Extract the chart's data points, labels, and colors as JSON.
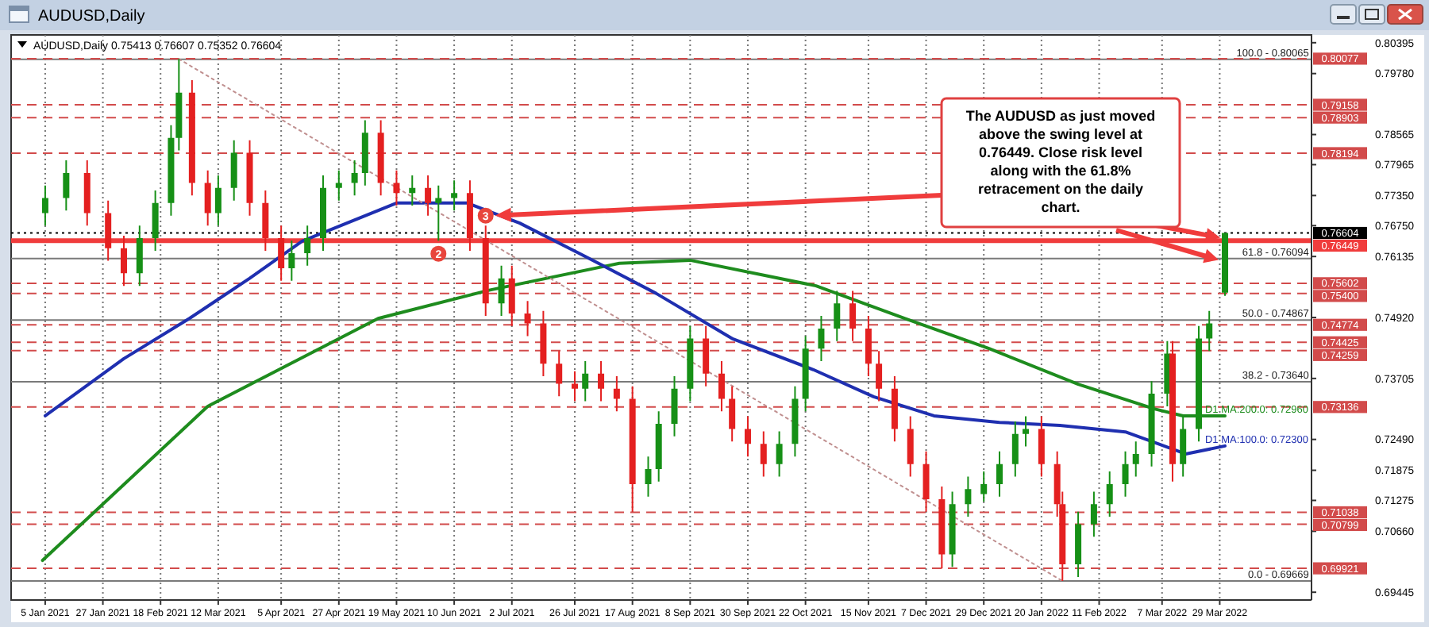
{
  "chart_data": {
    "type": "candlestick",
    "title": "AUDUSD,Daily",
    "subtitle": "AUDUSD,Daily 0.75413 0.76607 0.75352 0.76604",
    "x": [
      "2021-01-05",
      "2021-01-13",
      "2021-01-21",
      "2021-01-29",
      "2021-02-04",
      "2021-02-10",
      "2021-02-16",
      "2021-02-22",
      "2021-02-25",
      "2021-03-02",
      "2021-03-08",
      "2021-03-12",
      "2021-03-18",
      "2021-03-24",
      "2021-03-30",
      "2021-04-05",
      "2021-04-09",
      "2021-04-15",
      "2021-04-21",
      "2021-04-27",
      "2021-05-03",
      "2021-05-07",
      "2021-05-13",
      "2021-05-19",
      "2021-05-25",
      "2021-05-31",
      "2021-06-04",
      "2021-06-10",
      "2021-06-16",
      "2021-06-22",
      "2021-06-28",
      "2021-07-02",
      "2021-07-08",
      "2021-07-14",
      "2021-07-20",
      "2021-07-26",
      "2021-07-30",
      "2021-08-05",
      "2021-08-11",
      "2021-08-17",
      "2021-08-23",
      "2021-08-27",
      "2021-09-02",
      "2021-09-08",
      "2021-09-14",
      "2021-09-20",
      "2021-09-24",
      "2021-09-30",
      "2021-10-06",
      "2021-10-12",
      "2021-10-18",
      "2021-10-22",
      "2021-10-28",
      "2021-11-03",
      "2021-11-09",
      "2021-11-15",
      "2021-11-19",
      "2021-11-25",
      "2021-12-01",
      "2021-12-07",
      "2021-12-13",
      "2021-12-17",
      "2021-12-23",
      "2021-12-29",
      "2022-01-04",
      "2022-01-10",
      "2022-01-14",
      "2022-01-20",
      "2022-01-26",
      "2022-01-28",
      "2022-02-03",
      "2022-02-09",
      "2022-02-15",
      "2022-02-21",
      "2022-02-25",
      "2022-03-03",
      "2022-03-09",
      "2022-03-11",
      "2022-03-15",
      "2022-03-21",
      "2022-03-25",
      "2022-03-31"
    ],
    "ohlc": [
      [
        0.77,
        0.7755,
        0.7675,
        0.773
      ],
      [
        0.773,
        0.7805,
        0.7705,
        0.778
      ],
      [
        0.778,
        0.7805,
        0.7675,
        0.77
      ],
      [
        0.77,
        0.7725,
        0.7605,
        0.763
      ],
      [
        0.763,
        0.7655,
        0.7555,
        0.758
      ],
      [
        0.758,
        0.7675,
        0.7555,
        0.765
      ],
      [
        0.765,
        0.7745,
        0.7625,
        0.772
      ],
      [
        0.772,
        0.7875,
        0.7695,
        0.785
      ],
      [
        0.785,
        0.8007,
        0.7825,
        0.794
      ],
      [
        0.794,
        0.7965,
        0.7735,
        0.776
      ],
      [
        0.776,
        0.7785,
        0.7675,
        0.77
      ],
      [
        0.77,
        0.7775,
        0.7675,
        0.775
      ],
      [
        0.775,
        0.7845,
        0.7725,
        0.782
      ],
      [
        0.782,
        0.7845,
        0.7695,
        0.772
      ],
      [
        0.772,
        0.7745,
        0.7625,
        0.765
      ],
      [
        0.765,
        0.7675,
        0.7565,
        0.759
      ],
      [
        0.759,
        0.7645,
        0.7565,
        0.762
      ],
      [
        0.762,
        0.7675,
        0.7595,
        0.765
      ],
      [
        0.765,
        0.7775,
        0.7625,
        0.775
      ],
      [
        0.775,
        0.7785,
        0.7725,
        0.776
      ],
      [
        0.776,
        0.7805,
        0.7735,
        0.778
      ],
      [
        0.778,
        0.7885,
        0.7755,
        0.786
      ],
      [
        0.786,
        0.7885,
        0.7735,
        0.776
      ],
      [
        0.776,
        0.7785,
        0.7715,
        0.774
      ],
      [
        0.774,
        0.7775,
        0.7715,
        0.775
      ],
      [
        0.775,
        0.7775,
        0.7695,
        0.772
      ],
      [
        0.772,
        0.7755,
        0.7645,
        0.773
      ],
      [
        0.773,
        0.7765,
        0.7705,
        0.774
      ],
      [
        0.774,
        0.7765,
        0.7625,
        0.765
      ],
      [
        0.765,
        0.7675,
        0.7495,
        0.752
      ],
      [
        0.752,
        0.7595,
        0.7495,
        0.757
      ],
      [
        0.757,
        0.7595,
        0.7475,
        0.75
      ],
      [
        0.75,
        0.7525,
        0.7455,
        0.748
      ],
      [
        0.748,
        0.7505,
        0.7375,
        0.74
      ],
      [
        0.74,
        0.7425,
        0.7335,
        0.736
      ],
      [
        0.736,
        0.7385,
        0.7325,
        0.735
      ],
      [
        0.735,
        0.7405,
        0.7325,
        0.738
      ],
      [
        0.738,
        0.7405,
        0.7325,
        0.735
      ],
      [
        0.735,
        0.7375,
        0.7305,
        0.733
      ],
      [
        0.733,
        0.7355,
        0.7105,
        0.716
      ],
      [
        0.716,
        0.7215,
        0.7135,
        0.719
      ],
      [
        0.719,
        0.7305,
        0.7165,
        0.728
      ],
      [
        0.728,
        0.7375,
        0.7255,
        0.735
      ],
      [
        0.735,
        0.7475,
        0.7325,
        0.745
      ],
      [
        0.745,
        0.7475,
        0.7355,
        0.738
      ],
      [
        0.738,
        0.7405,
        0.7305,
        0.733
      ],
      [
        0.733,
        0.7355,
        0.7245,
        0.727
      ],
      [
        0.727,
        0.7295,
        0.7215,
        0.724
      ],
      [
        0.724,
        0.7265,
        0.7175,
        0.72
      ],
      [
        0.72,
        0.7265,
        0.7175,
        0.724
      ],
      [
        0.724,
        0.7355,
        0.7215,
        0.733
      ],
      [
        0.733,
        0.7455,
        0.7305,
        0.743
      ],
      [
        0.743,
        0.7495,
        0.7405,
        0.747
      ],
      [
        0.747,
        0.7545,
        0.7445,
        0.752
      ],
      [
        0.752,
        0.7545,
        0.7445,
        0.747
      ],
      [
        0.747,
        0.7495,
        0.7375,
        0.74
      ],
      [
        0.74,
        0.7425,
        0.7325,
        0.735
      ],
      [
        0.735,
        0.7375,
        0.7245,
        0.727
      ],
      [
        0.727,
        0.7295,
        0.7175,
        0.72
      ],
      [
        0.72,
        0.7225,
        0.7105,
        0.713
      ],
      [
        0.713,
        0.7155,
        0.6992,
        0.702
      ],
      [
        0.702,
        0.7145,
        0.6995,
        0.712
      ],
      [
        0.712,
        0.7175,
        0.7095,
        0.715
      ],
      [
        0.714,
        0.7185,
        0.7125,
        0.716
      ],
      [
        0.716,
        0.7225,
        0.7135,
        0.72
      ],
      [
        0.72,
        0.7285,
        0.7175,
        0.726
      ],
      [
        0.726,
        0.7295,
        0.7235,
        0.727
      ],
      [
        0.727,
        0.7295,
        0.7175,
        0.72
      ],
      [
        0.72,
        0.7225,
        0.7095,
        0.712
      ],
      [
        0.712,
        0.7145,
        0.6967,
        0.7
      ],
      [
        0.7,
        0.7105,
        0.6975,
        0.708
      ],
      [
        0.708,
        0.7145,
        0.7055,
        0.712
      ],
      [
        0.712,
        0.7185,
        0.7095,
        0.716
      ],
      [
        0.716,
        0.7225,
        0.7135,
        0.72
      ],
      [
        0.72,
        0.7245,
        0.7175,
        0.722
      ],
      [
        0.722,
        0.7365,
        0.7195,
        0.734
      ],
      [
        0.734,
        0.7445,
        0.7315,
        0.742
      ],
      [
        0.742,
        0.7445,
        0.7165,
        0.72
      ],
      [
        0.72,
        0.7295,
        0.7175,
        0.727
      ],
      [
        0.727,
        0.7475,
        0.7245,
        0.745
      ],
      [
        0.745,
        0.7505,
        0.7425,
        0.748
      ],
      [
        0.75413,
        0.76607,
        0.75352,
        0.76604
      ]
    ],
    "xlim": [
      "2020-12-23",
      "2022-05-03"
    ],
    "xticks": [
      {
        "value": "2021-01-05",
        "label": "5 Jan 2021"
      },
      {
        "value": "2021-01-27",
        "label": "27 Jan 2021"
      },
      {
        "value": "2021-02-18",
        "label": "18 Feb 2021"
      },
      {
        "value": "2021-03-12",
        "label": "12 Mar 2021"
      },
      {
        "value": "2021-04-05",
        "label": "5 Apr 2021"
      },
      {
        "value": "2021-04-27",
        "label": "27 Apr 2021"
      },
      {
        "value": "2021-05-19",
        "label": "19 May 2021"
      },
      {
        "value": "2021-06-10",
        "label": "10 Jun 2021"
      },
      {
        "value": "2021-07-02",
        "label": "2 Jul 2021"
      },
      {
        "value": "2021-07-26",
        "label": "26 Jul 2021"
      },
      {
        "value": "2021-08-17",
        "label": "17 Aug 2021"
      },
      {
        "value": "2021-09-08",
        "label": "8 Sep 2021"
      },
      {
        "value": "2021-09-30",
        "label": "30 Sep 2021"
      },
      {
        "value": "2021-10-22",
        "label": "22 Oct 2021"
      },
      {
        "value": "2021-11-15",
        "label": "15 Nov 2021"
      },
      {
        "value": "2021-12-07",
        "label": "7 Dec 2021"
      },
      {
        "value": "2021-12-29",
        "label": "29 Dec 2021"
      },
      {
        "value": "2022-01-20",
        "label": "20 Jan 2022"
      },
      {
        "value": "2022-02-11",
        "label": "11 Feb 2022"
      },
      {
        "value": "2022-03-07",
        "label": "7 Mar 2022"
      },
      {
        "value": "2022-03-29",
        "label": "29 Mar 2022"
      }
    ],
    "ylim": [
      0.6929,
      0.8055
    ],
    "yticks": [
      0.80395,
      {
        "value": 0.7978,
        "label": "0.79780"
      },
      0.78565,
      0.77965,
      {
        "value": 0.7735,
        "label": "0.77350"
      },
      {
        "value": 0.7675,
        "label": "0.76750"
      },
      0.76135,
      {
        "value": 0.7492,
        "label": "0.74920"
      },
      0.73705,
      {
        "value": 0.7249,
        "label": "0.72490"
      },
      0.71875,
      0.71275,
      {
        "value": 0.7066,
        "label": "0.70660"
      },
      0.69445
    ],
    "grid": "x",
    "series": [
      {
        "type": "line",
        "name": "D1 MA:200.0: 0.72960",
        "color": "#1e8c1e",
        "x": [
          "2021-01-04",
          "2021-03-08",
          "2021-05-12",
          "2021-06-23",
          "2021-08-12",
          "2021-09-08",
          "2021-10-26",
          "2021-11-29",
          "2021-12-31",
          "2022-02-03",
          "2022-03-04",
          "2022-03-15",
          "2022-03-31"
        ],
        "values": [
          0.7008,
          0.7315,
          0.749,
          0.7546,
          0.76,
          0.7606,
          0.7555,
          0.749,
          0.743,
          0.7359,
          0.731,
          0.7296,
          0.7296
        ]
      },
      {
        "type": "line",
        "name": "D1 MA:100.0: 0.72300",
        "color": "#1f2fb0",
        "x": [
          "2021-01-05",
          "2021-02-04",
          "2021-03-01",
          "2021-03-24",
          "2021-04-13",
          "2021-05-19",
          "2021-06-15",
          "2021-07-05",
          "2021-07-28",
          "2021-08-26",
          "2021-09-24",
          "2021-10-25",
          "2021-11-17",
          "2021-12-10",
          "2022-01-04",
          "2022-01-27",
          "2022-02-21",
          "2022-03-03",
          "2022-03-16",
          "2022-03-31"
        ],
        "values": [
          0.7296,
          0.741,
          0.749,
          0.757,
          0.7644,
          0.772,
          0.772,
          0.768,
          0.7619,
          0.754,
          0.745,
          0.7388,
          0.7334,
          0.7296,
          0.7283,
          0.7277,
          0.7264,
          0.7245,
          0.722,
          0.7236
        ]
      },
      {
        "type": "line",
        "color": "#c09090",
        "line_style": "dotted",
        "x": [
          "2021-02-25",
          "2022-01-28"
        ],
        "values": [
          0.8007,
          0.6967
        ]
      }
    ],
    "ref_lines": [
      {
        "axis": "y",
        "value": 0.80065,
        "color": "#7a7a7a",
        "line_style": "solid"
      },
      {
        "axis": "y",
        "value": 0.76094,
        "color": "#7a7a7a",
        "line_style": "solid"
      },
      {
        "axis": "y",
        "value": 0.74867,
        "color": "#7a7a7a",
        "line_style": "solid"
      },
      {
        "axis": "y",
        "value": 0.7364,
        "color": "#7a7a7a",
        "line_style": "solid"
      },
      {
        "axis": "y",
        "value": 0.69669,
        "color": "#7a7a7a",
        "line_style": "solid"
      },
      {
        "axis": "y",
        "value": 0.80077,
        "label": "0.80077",
        "color": "#d24b4b",
        "line_style": "dashed"
      },
      {
        "axis": "y",
        "value": 0.79158,
        "label": "0.79158",
        "color": "#d24b4b",
        "line_style": "dashed"
      },
      {
        "axis": "y",
        "value": 0.78903,
        "label": "0.78903",
        "color": "#d24b4b",
        "line_style": "dashed"
      },
      {
        "axis": "y",
        "value": 0.78194,
        "label": "0.78194",
        "color": "#d24b4b",
        "line_style": "dashed"
      },
      {
        "axis": "y",
        "value": 0.76604,
        "label": "0.76604",
        "color": "#000000",
        "line_style": "dotted"
      },
      {
        "axis": "y",
        "value": 0.76449,
        "label": "0.76449",
        "color": "#f03c3c",
        "line_style": "solid"
      },
      {
        "axis": "y",
        "value": 0.75602,
        "label": "0.75602",
        "color": "#d24b4b",
        "line_style": "dashed"
      },
      {
        "axis": "y",
        "value": 0.754,
        "label": "0.75400",
        "color": "#d24b4b",
        "line_style": "dashed"
      },
      {
        "axis": "y",
        "value": 0.74774,
        "label": "0.74774",
        "color": "#d24b4b",
        "line_style": "dashed"
      },
      {
        "axis": "y",
        "value": 0.74425,
        "label": "0.74425",
        "color": "#d24b4b",
        "line_style": "dashed"
      },
      {
        "axis": "y",
        "value": 0.74259,
        "label": "0.74259",
        "color": "#d24b4b",
        "line_style": "dashed"
      },
      {
        "axis": "y",
        "value": 0.73136,
        "label": "0.73136",
        "color": "#d24b4b",
        "line_style": "dashed"
      },
      {
        "axis": "y",
        "value": 0.71038,
        "label": "0.71038",
        "color": "#d24b4b",
        "line_style": "dashed"
      },
      {
        "axis": "y",
        "value": 0.70799,
        "label": "0.70799",
        "color": "#d24b4b",
        "line_style": "dashed"
      },
      {
        "axis": "y",
        "value": 0.69921,
        "label": "0.69921",
        "color": "#d24b4b",
        "line_style": "dashed"
      }
    ],
    "annotations": [
      "The AUDUSD as just moved above the swing level at 0.76449.  Close risk level along with the 61.8% retracement on the daily chart.",
      {
        "text": "2",
        "x": "2021-06-04",
        "y": 0.7619
      },
      {
        "text": "3",
        "x": "2021-06-22",
        "y": 0.7695
      },
      {
        "text": "100.0 - 0.80065",
        "x": "2022-05-02",
        "y": 0.80065
      },
      {
        "text": "61.8 - 0.76094",
        "x": "2022-05-02",
        "y": 0.76094
      },
      {
        "text": "50.0 - 0.74867",
        "x": "2022-05-02",
        "y": 0.74867
      },
      {
        "text": "38.2 - 0.73640",
        "x": "2022-05-02",
        "y": 0.7364
      },
      {
        "text": "0.0 - 0.69669",
        "x": "2022-05-02",
        "y": 0.69669
      }
    ]
  }
}
